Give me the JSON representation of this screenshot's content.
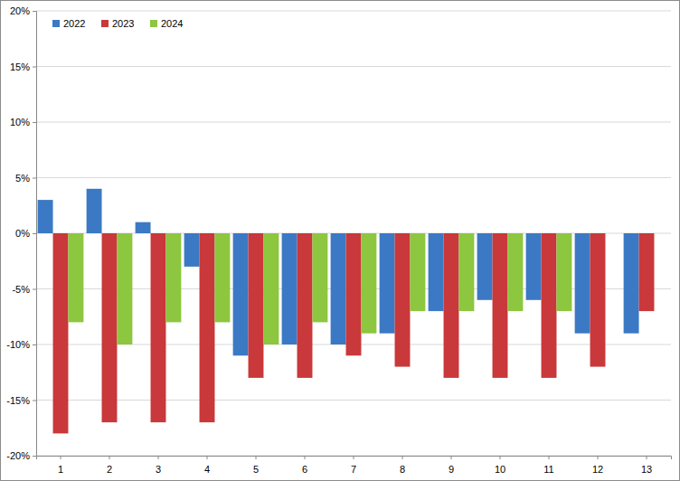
{
  "chart_data": {
    "type": "bar",
    "categories": [
      "1",
      "2",
      "3",
      "4",
      "5",
      "6",
      "7",
      "8",
      "9",
      "10",
      "11",
      "12",
      "13"
    ],
    "series": [
      {
        "name": "2022",
        "color": "#3b79c4",
        "values": [
          3,
          4,
          1,
          -3,
          -11,
          -10,
          -10,
          -9,
          -7,
          -6,
          -6,
          -9,
          -9
        ]
      },
      {
        "name": "2023",
        "color": "#c9383a",
        "values": [
          -18,
          -17,
          -17,
          -17,
          -13,
          -13,
          -11,
          -12,
          -13,
          -13,
          -13,
          -12,
          -7
        ]
      },
      {
        "name": "2024",
        "color": "#8dc63f",
        "values": [
          -8,
          -10,
          -8,
          -8,
          -10,
          -8,
          -9,
          -7,
          -7,
          -7,
          -7,
          null,
          null
        ]
      }
    ],
    "ylim": [
      -20,
      20
    ],
    "yticks": [
      {
        "value": -20,
        "label": "-20%"
      },
      {
        "value": -15,
        "label": "-15%"
      },
      {
        "value": -10,
        "label": "-10%"
      },
      {
        "value": -5,
        "label": "-5%"
      },
      {
        "value": 0,
        "label": "0%"
      },
      {
        "value": 5,
        "label": "5%"
      },
      {
        "value": 10,
        "label": "10%"
      },
      {
        "value": 15,
        "label": "15%"
      },
      {
        "value": 20,
        "label": "20%"
      }
    ],
    "grid": true,
    "legend": "top-left"
  }
}
